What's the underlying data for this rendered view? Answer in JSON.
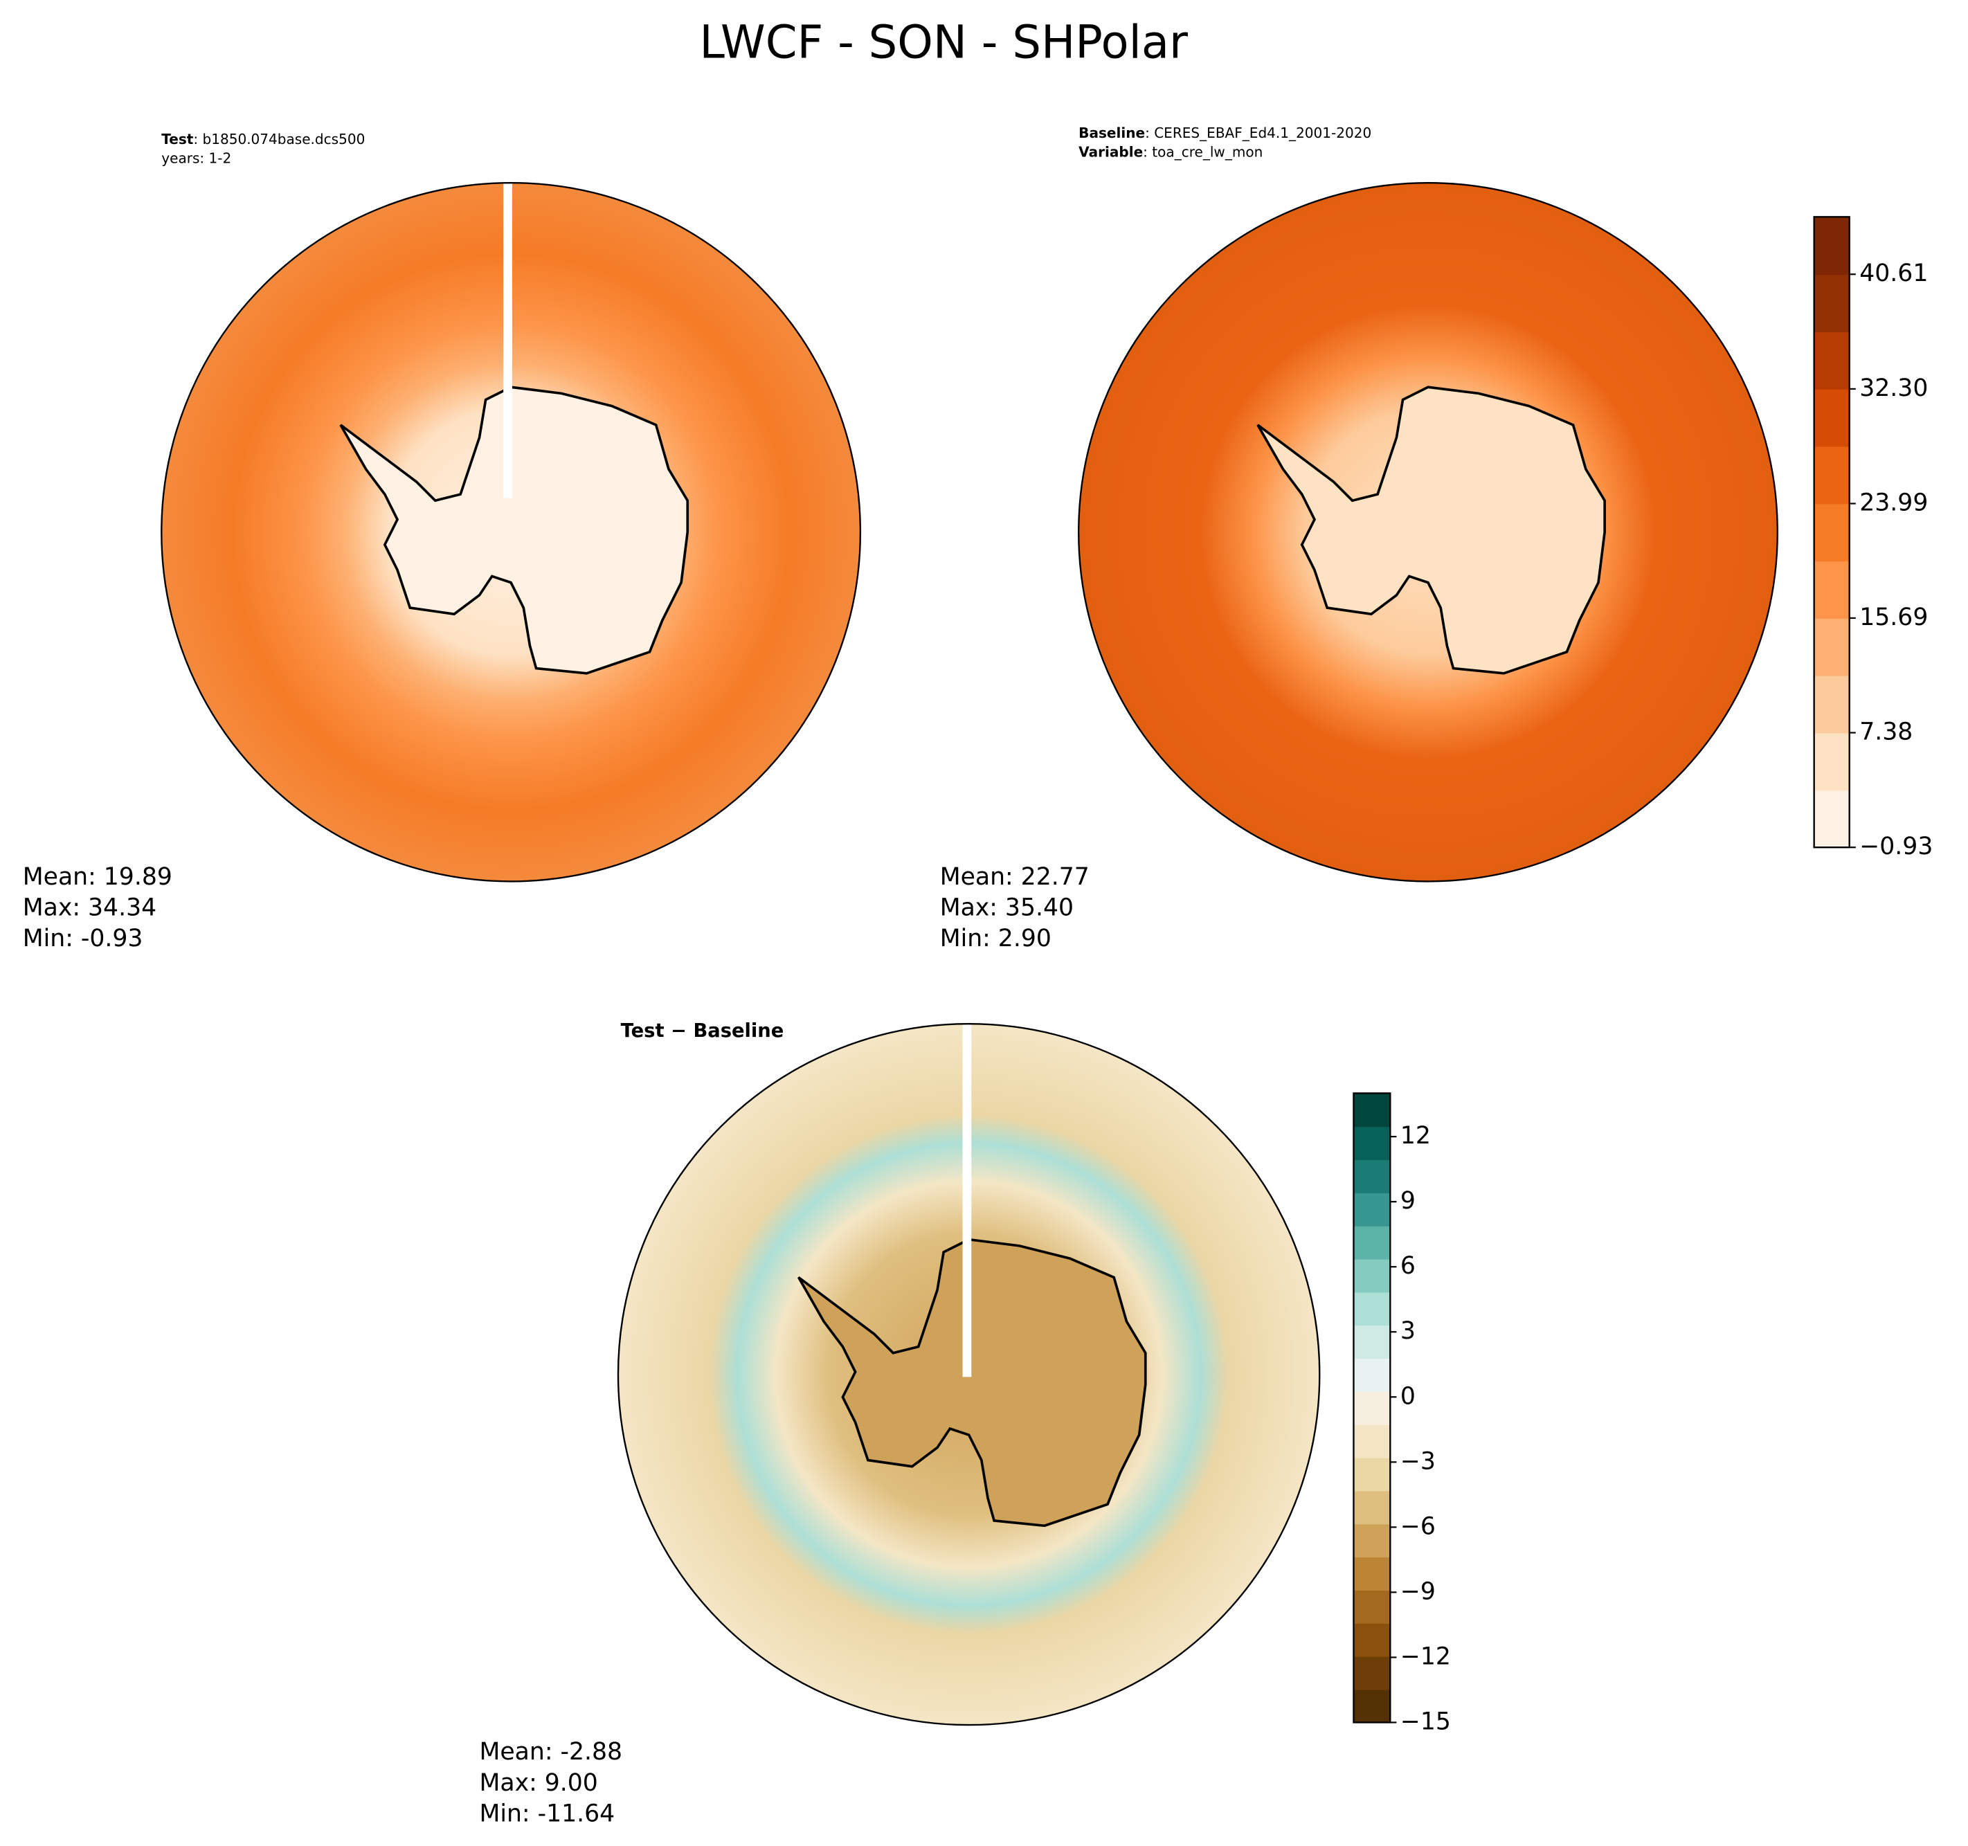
{
  "title": "LWCF - SON - SHPolar",
  "panels": [
    {
      "header": [
        {
          "label": "Test",
          "text": ": b1850.074base.dcs500"
        },
        {
          "text": "years: 1-2"
        }
      ],
      "stats": [
        "Mean: 19.89",
        "Max: 34.34",
        "Min: -0.93"
      ]
    },
    {
      "header": [
        {
          "label": "Baseline",
          "text": ": CERES_EBAF_Ed4.1_2001-2020"
        },
        {
          "label": "Variable",
          "text": ": toa_cre_lw_mon"
        }
      ],
      "stats": [
        "Mean: 22.77",
        "Max: 35.40",
        "Min:  2.90"
      ]
    },
    {
      "header": [
        {
          "label": "Test − Baseline"
        }
      ],
      "stats": [
        "Mean: -2.88",
        "Max:  9.00",
        "Min: -11.64"
      ]
    }
  ],
  "colorbars": [
    {
      "ylim": [
        -0.93,
        44.77
      ],
      "yticks": [
        {
          "value": -0.93,
          "label": "−0.93"
        },
        7.38,
        15.69,
        23.99,
        {
          "value": 32.3,
          "label": "32.30"
        },
        40.61
      ],
      "colors": [
        "#fff1e3",
        "#fee2c4",
        "#fdcb9b",
        "#fdb071",
        "#fd9448",
        "#f57b26",
        "#ea6414",
        "#d64b05",
        "#b63c02",
        "#923103",
        "#7f2704"
      ]
    },
    {
      "ylim": [
        -15,
        14
      ],
      "yticks": [
        {
          "value": -15,
          "label": "−15"
        },
        {
          "value": -12,
          "label": "−12"
        },
        {
          "value": -9,
          "label": "−9"
        },
        {
          "value": -6,
          "label": "−6"
        },
        {
          "value": -3,
          "label": "−3"
        },
        0,
        3,
        6,
        9,
        12
      ],
      "colors": [
        "#543005",
        "#6e3e09",
        "#8a510c",
        "#a36a1f",
        "#bc8535",
        "#cfa25a",
        "#dfbf7f",
        "#ebd6a5",
        "#f4e6c5",
        "#f6efdf",
        "#e8f3f1",
        "#cdeae5",
        "#addfd6",
        "#85cbc0",
        "#5cb3a8",
        "#35978f",
        "#1a7c74",
        "#06625a",
        "#01463c"
      ]
    }
  ]
}
